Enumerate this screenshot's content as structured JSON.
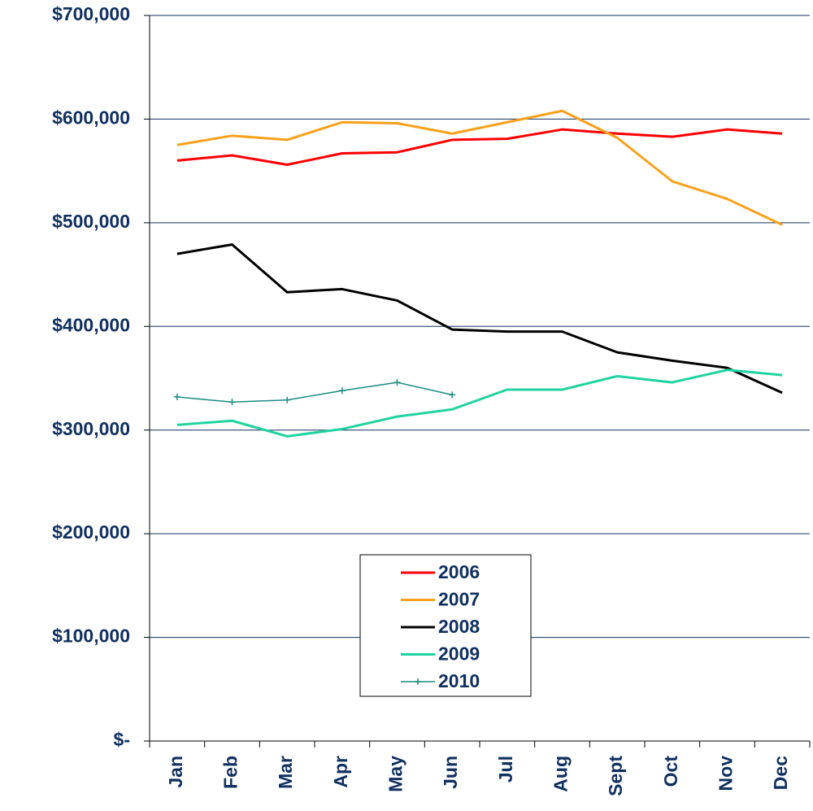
{
  "chart_data": {
    "type": "line",
    "categories": [
      "Jan",
      "Feb",
      "Mar",
      "Apr",
      "May",
      "Jun",
      "Jul",
      "Aug",
      "Sept",
      "Oct",
      "Nov",
      "Dec"
    ],
    "series": [
      {
        "name": "2006",
        "color": "#ff0000",
        "values": [
          560000,
          565000,
          556000,
          567000,
          568000,
          580000,
          581000,
          590000,
          586000,
          583000,
          590000,
          586000
        ]
      },
      {
        "name": "2007",
        "color": "#f9a11b",
        "values": [
          575000,
          584000,
          580000,
          597000,
          596000,
          586000,
          597000,
          608000,
          582000,
          540000,
          523000,
          498000
        ]
      },
      {
        "name": "2008",
        "color": "#000000",
        "values": [
          470000,
          479000,
          433000,
          436000,
          425000,
          397000,
          395000,
          395000,
          375000,
          367000,
          360000,
          336000
        ]
      },
      {
        "name": "2009",
        "color": "#20d3a0",
        "values": [
          305000,
          309000,
          294000,
          301000,
          313000,
          320000,
          339000,
          339000,
          352000,
          346000,
          358000,
          353000
        ]
      },
      {
        "name": "2010",
        "color": "#1a8c80",
        "marker": "plus",
        "values": [
          332000,
          327000,
          329000,
          338000,
          346000,
          334000,
          null,
          null,
          null,
          null,
          null,
          null
        ]
      }
    ],
    "ylim": [
      0,
      700000
    ],
    "yticks": [
      {
        "value": 0,
        "label": "$-"
      },
      {
        "value": 100000,
        "label": "$100,000"
      },
      {
        "value": 200000,
        "label": "$200,000"
      },
      {
        "value": 300000,
        "label": "$300,000"
      },
      {
        "value": 400000,
        "label": "$400,000"
      },
      {
        "value": 500000,
        "label": "$500,000"
      },
      {
        "value": 600000,
        "label": "$600,000"
      },
      {
        "value": 700000,
        "label": "$700,000"
      }
    ],
    "grid": true
  }
}
